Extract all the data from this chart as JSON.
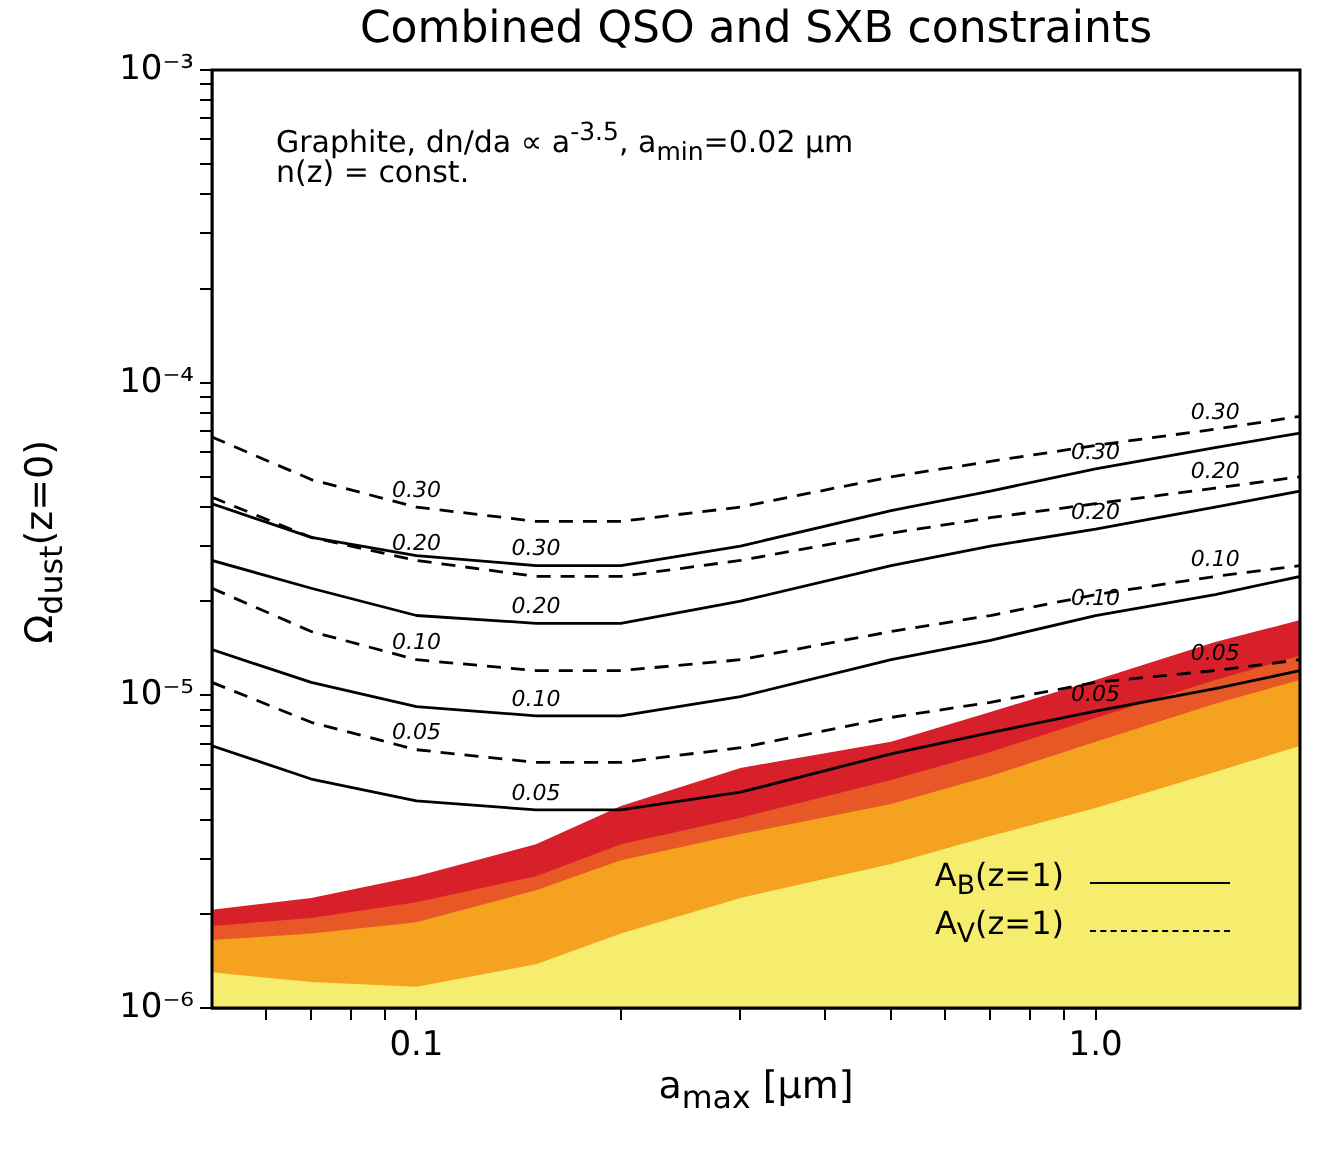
{
  "chart_data": {
    "type": "line",
    "title": "Combined QSO and SXB constraints",
    "xlabel": "a$_{max}$ [μm]",
    "ylabel": "Ω$_{dust}$(z=0)",
    "annotations": [
      "Graphite, dn/da ∝ a$^{-3.5}$, a$_{min}$=0.02 μm",
      "n(z) = const.",
      "A$_{B}$(z=1)",
      "A$_{V}$(z=1)"
    ],
    "log": "xy",
    "grid": false,
    "legend": false,
    "marker": "none",
    "xlim": [
      0.05,
      2
    ],
    "ylim": [
      1e-06,
      0.001
    ],
    "xticks": [
      {
        "value": 0.06,
        "label": null
      },
      {
        "value": 0.07,
        "label": null
      },
      {
        "value": 0.08,
        "label": null
      },
      {
        "value": 0.09,
        "label": null
      },
      {
        "value": 0.1,
        "label": "0.1"
      },
      {
        "value": 0.2,
        "label": null
      },
      {
        "value": 0.3,
        "label": null
      },
      {
        "value": 0.4,
        "label": null
      },
      {
        "value": 0.5,
        "label": null
      },
      {
        "value": 0.6,
        "label": null
      },
      {
        "value": 0.7,
        "label": null
      },
      {
        "value": 0.8,
        "label": null
      },
      {
        "value": 0.9,
        "label": null
      },
      {
        "value": 1,
        "label": "1.0"
      }
    ],
    "yticks": [
      {
        "value": 1e-06,
        "label": "10⁻⁶"
      },
      {
        "value": 2e-06,
        "label": null
      },
      {
        "value": 3e-06,
        "label": null
      },
      {
        "value": 4e-06,
        "label": null
      },
      {
        "value": 5e-06,
        "label": null
      },
      {
        "value": 6e-06,
        "label": null
      },
      {
        "value": 7e-06,
        "label": null
      },
      {
        "value": 8e-06,
        "label": null
      },
      {
        "value": 9e-06,
        "label": null
      },
      {
        "value": 1e-05,
        "label": "10⁻⁵"
      },
      {
        "value": 2e-05,
        "label": null
      },
      {
        "value": 3e-05,
        "label": null
      },
      {
        "value": 4e-05,
        "label": null
      },
      {
        "value": 5e-05,
        "label": null
      },
      {
        "value": 6e-05,
        "label": null
      },
      {
        "value": 7e-05,
        "label": null
      },
      {
        "value": 8e-05,
        "label": null
      },
      {
        "value": 9e-05,
        "label": null
      },
      {
        "value": 0.0001,
        "label": "10⁻⁴"
      },
      {
        "value": 0.0002,
        "label": null
      },
      {
        "value": 0.0003,
        "label": null
      },
      {
        "value": 0.0004,
        "label": null
      },
      {
        "value": 0.0005,
        "label": null
      },
      {
        "value": 0.0006,
        "label": null
      },
      {
        "value": 0.0007,
        "label": null
      },
      {
        "value": 0.0008,
        "label": null
      },
      {
        "value": 0.0009,
        "label": null
      },
      {
        "value": 0.001,
        "label": "10⁻³"
      }
    ],
    "x": [
      0.05,
      0.07,
      0.1,
      0.15,
      0.2,
      0.3,
      0.5,
      0.7,
      1.0,
      1.5,
      2.0
    ],
    "series": [
      {
        "name": "0.30",
        "type": "line",
        "line_style": "dashed",
        "color": "#000000",
        "values": [
          6.7e-05,
          4.9e-05,
          4e-05,
          3.6e-05,
          3.6e-05,
          4e-05,
          5e-05,
          5.6e-05,
          6.3e-05,
          7.1e-05,
          7.8e-05
        ]
      },
      {
        "name": "0.30",
        "type": "line",
        "line_style": "solid",
        "color": "#000000",
        "values": [
          4.1e-05,
          3.2e-05,
          2.8e-05,
          2.6e-05,
          2.6e-05,
          3e-05,
          3.9e-05,
          4.5e-05,
          5.3e-05,
          6.2e-05,
          6.9e-05
        ]
      },
      {
        "name": "0.20",
        "type": "line",
        "line_style": "dashed",
        "color": "#000000",
        "values": [
          4.3e-05,
          3.2e-05,
          2.7e-05,
          2.4e-05,
          2.4e-05,
          2.7e-05,
          3.3e-05,
          3.7e-05,
          4.1e-05,
          4.6e-05,
          5e-05
        ]
      },
      {
        "name": "0.20",
        "type": "line",
        "line_style": "solid",
        "color": "#000000",
        "values": [
          2.7e-05,
          2.2e-05,
          1.8e-05,
          1.7e-05,
          1.7e-05,
          2e-05,
          2.6e-05,
          3e-05,
          3.4e-05,
          4e-05,
          4.5e-05
        ]
      },
      {
        "name": "0.10",
        "type": "line",
        "line_style": "dashed",
        "color": "#000000",
        "values": [
          2.2e-05,
          1.6e-05,
          1.3e-05,
          1.2e-05,
          1.2e-05,
          1.3e-05,
          1.6e-05,
          1.8e-05,
          2.1e-05,
          2.4e-05,
          2.6e-05
        ]
      },
      {
        "name": "0.10",
        "type": "line",
        "line_style": "solid",
        "color": "#000000",
        "values": [
          1.4e-05,
          1.1e-05,
          9.2e-06,
          8.6e-06,
          8.6e-06,
          9.9e-06,
          1.3e-05,
          1.5e-05,
          1.8e-05,
          2.1e-05,
          2.4e-05
        ]
      },
      {
        "name": "0.05",
        "type": "line",
        "line_style": "dashed",
        "color": "#000000",
        "values": [
          1.1e-05,
          8.2e-06,
          6.7e-06,
          6.1e-06,
          6.1e-06,
          6.8e-06,
          8.5e-06,
          9.5e-06,
          1.1e-05,
          1.2e-05,
          1.3e-05
        ]
      },
      {
        "name": "0.05",
        "type": "line",
        "line_style": "solid",
        "color": "#000000",
        "values": [
          6.9e-06,
          5.4e-06,
          4.6e-06,
          4.3e-06,
          4.3e-06,
          4.9e-06,
          6.5e-06,
          7.6e-06,
          8.9e-06,
          1.05e-05,
          1.2e-05
        ]
      },
      {
        "type": "area",
        "color": "#f6ed6f",
        "values": [
          1.3e-06,
          1.21e-06,
          1.17e-06,
          1.38e-06,
          1.73e-06,
          2.25e-06,
          2.89e-06,
          3.55e-06,
          4.36e-06,
          5.69e-06,
          6.89e-06
        ]
      },
      {
        "type": "area",
        "color": "#f4a21f",
        "values": [
          1.65e-06,
          1.73e-06,
          1.88e-06,
          2.38e-06,
          2.97e-06,
          3.6e-06,
          4.49e-06,
          5.52e-06,
          7.1e-06,
          9.4e-06,
          1.12e-05
        ]
      },
      {
        "type": "area",
        "color": "#e85726",
        "values": [
          1.83e-06,
          1.94e-06,
          2.18e-06,
          2.64e-06,
          3.34e-06,
          4.06e-06,
          5.36e-06,
          6.59e-06,
          8.46e-06,
          1.12e-05,
          1.34e-05
        ]
      },
      {
        "type": "area",
        "color": "#d7202a",
        "values": [
          2.06e-06,
          2.25e-06,
          2.64e-06,
          3.34e-06,
          4.43e-06,
          5.86e-06,
          7.1e-06,
          8.85e-06,
          1.12e-05,
          1.48e-05,
          1.74e-05
        ]
      }
    ]
  }
}
